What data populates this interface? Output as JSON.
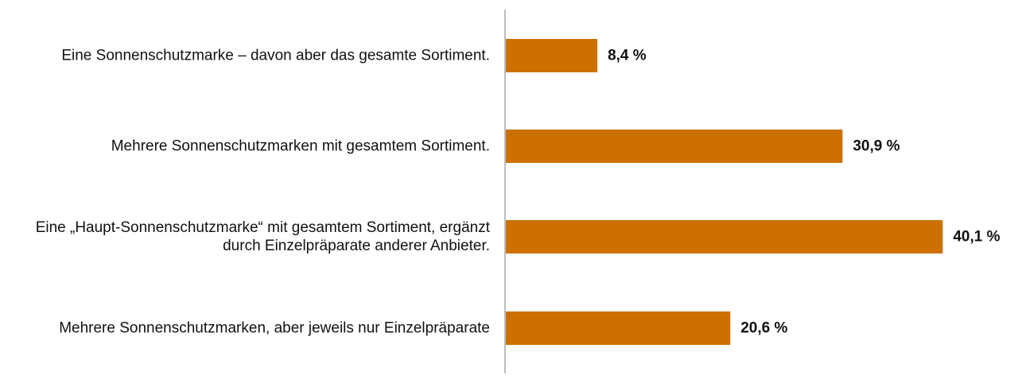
{
  "chart_data": {
    "type": "bar",
    "orientation": "horizontal",
    "categories": [
      [
        "Eine Sonnenschutzmarke – davon aber das gesamte Sortiment."
      ],
      [
        "Mehrere Sonnenschutzmarken mit gesamtem Sortiment."
      ],
      [
        "Eine „Haupt-Sonnenschutzmarke“ mit gesamtem Sortiment, ergänzt",
        "durch Einzelpräparate anderer Anbieter."
      ],
      [
        "Mehrere Sonnenschutzmarken, aber jeweils nur Einzelpräparate"
      ]
    ],
    "values": [
      8.4,
      30.9,
      40.1,
      20.6
    ],
    "value_labels": [
      "8,4 %",
      "30,9 %",
      "40,1 %",
      "20,6 %"
    ],
    "bar_color": "#CC7000",
    "axis_color": "#A6A6A6",
    "grid": false,
    "legend": false,
    "xlim": [
      0,
      50
    ]
  }
}
